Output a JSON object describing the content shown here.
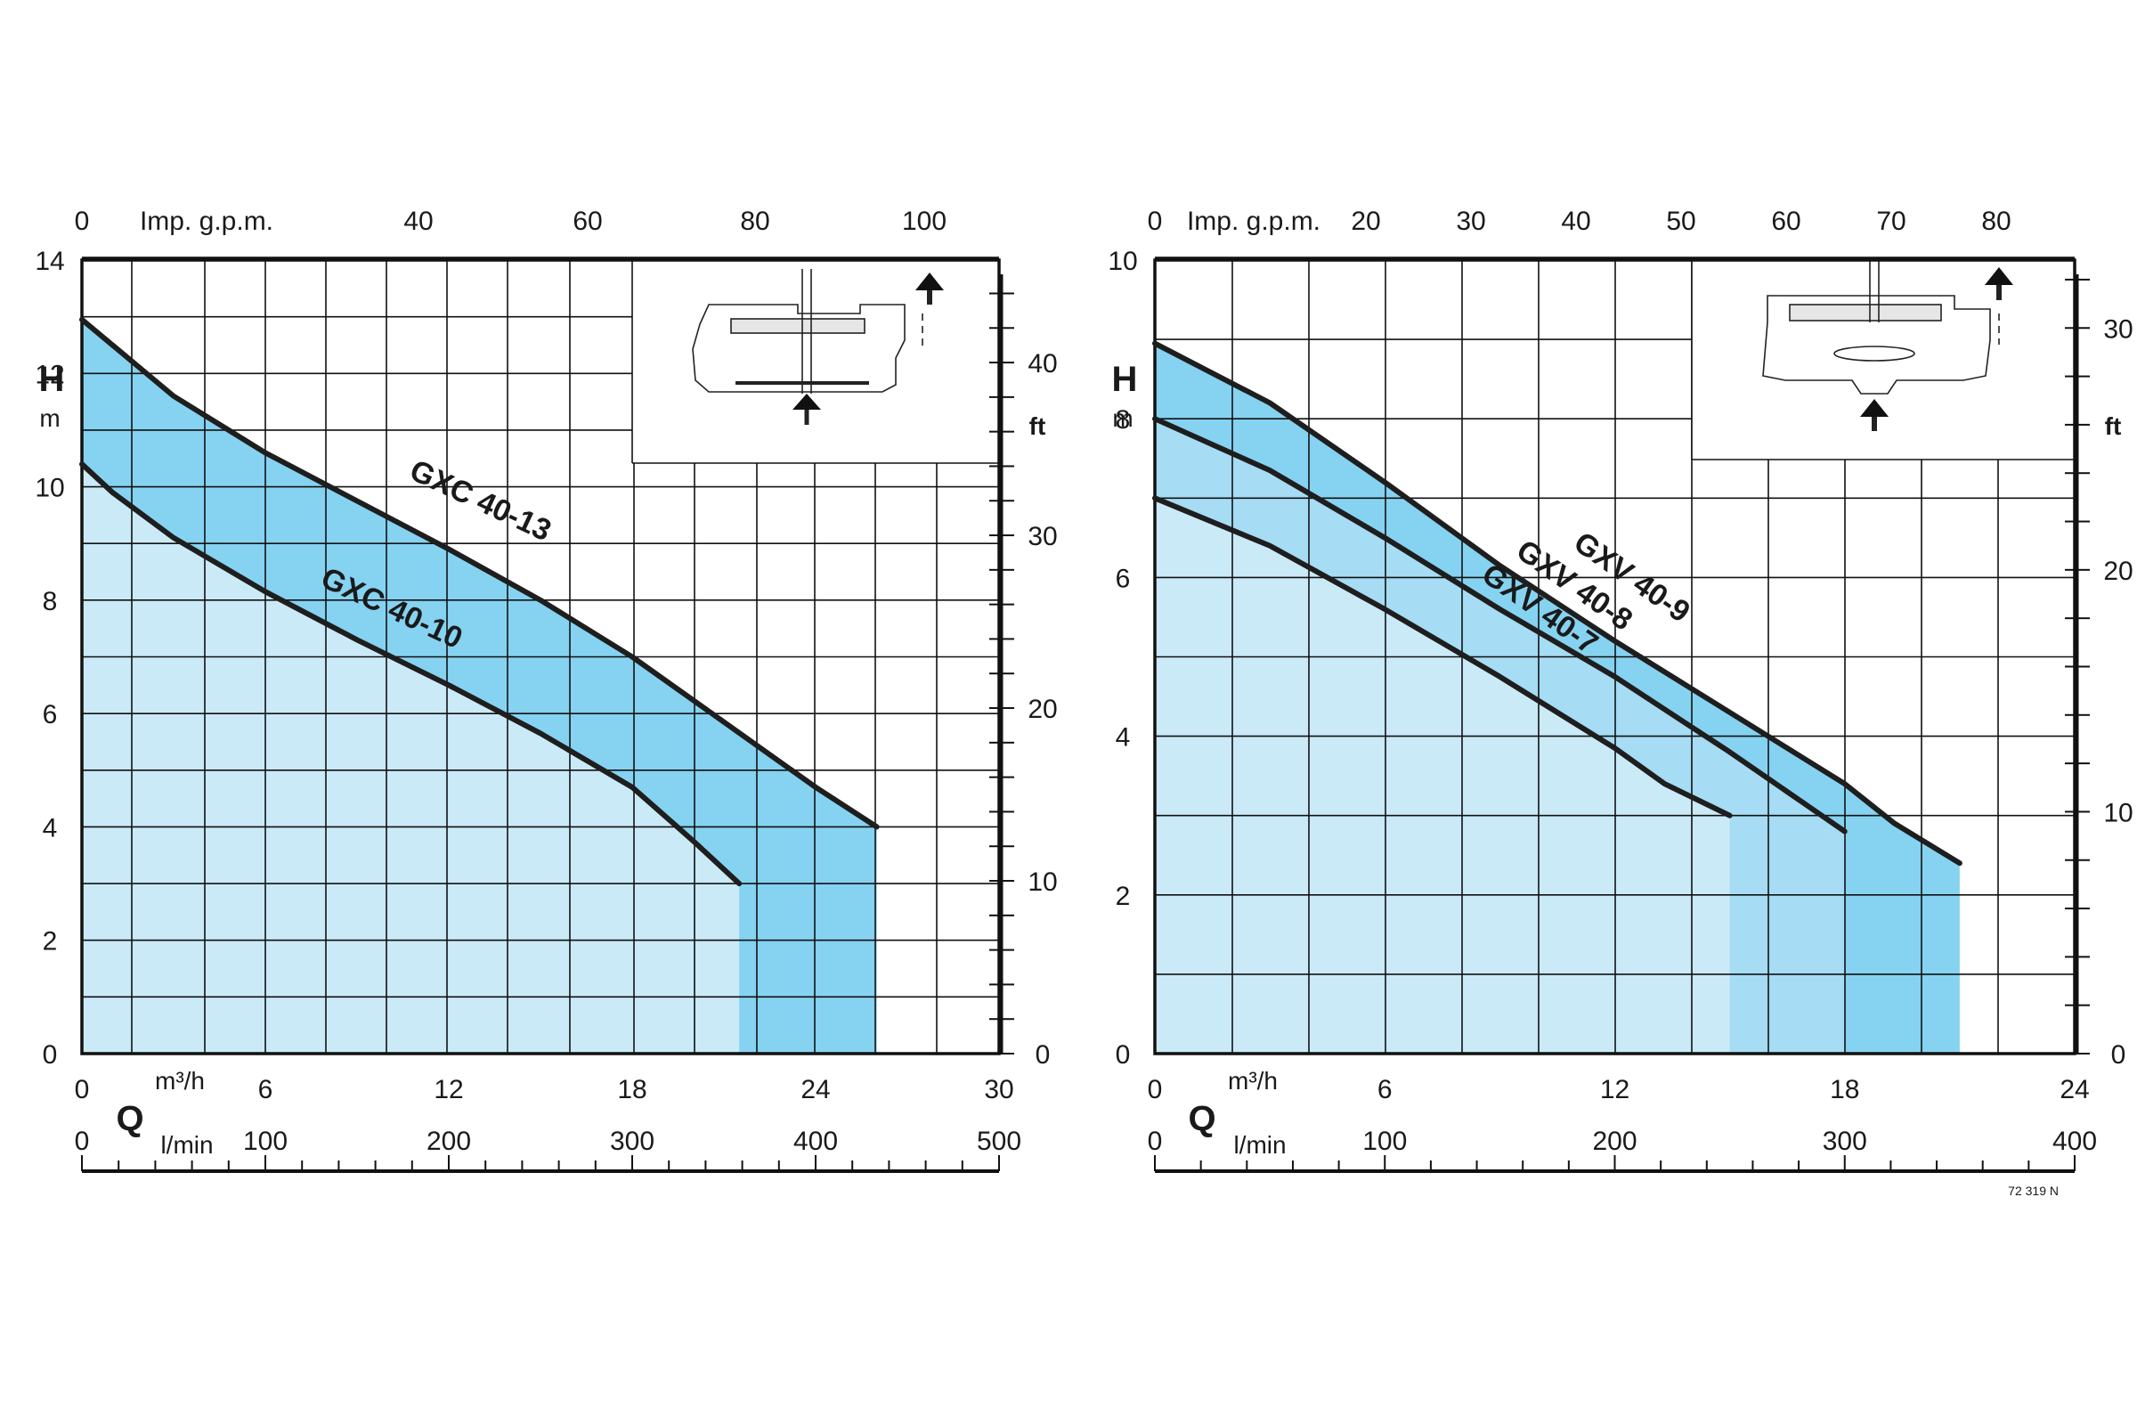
{
  "colors": {
    "fill_light": "#cbeaf8",
    "fill_mid": "#a6dcf4",
    "fill_dark": "#86d2f1",
    "curve": "#1e1e1e",
    "grid": "#111111"
  },
  "figure_code": "72 319 N",
  "chart_data": [
    {
      "type": "line",
      "area_fill": true,
      "left_axis": {
        "letter": "H",
        "unit": "m",
        "ticks": [
          0,
          2,
          4,
          6,
          8,
          10,
          12,
          14
        ],
        "range": [
          0,
          14
        ]
      },
      "right_axis": {
        "unit": "ft",
        "ticks": [
          0,
          10,
          20,
          30,
          40
        ],
        "range_m": [
          0,
          14
        ]
      },
      "top_axis": {
        "label": "Imp. g.p.m.",
        "ticks": [
          0,
          40,
          60,
          80,
          100
        ]
      },
      "bottom_axis": {
        "letter": "Q",
        "unit": "m³/h",
        "unit_lmin": "l/min",
        "ticks": [
          0,
          6,
          12,
          18,
          24,
          30
        ],
        "ticks_lmin": [
          0,
          100,
          200,
          300,
          400,
          500
        ],
        "range": [
          0,
          30
        ]
      },
      "series": [
        {
          "name": "GXC 40-13",
          "x": [
            0,
            1,
            3,
            6,
            9,
            12,
            15,
            18,
            21,
            24,
            26
          ],
          "y": [
            12.95,
            12.5,
            11.6,
            10.6,
            9.75,
            8.9,
            8.0,
            7.0,
            5.85,
            4.7,
            4.0
          ]
        },
        {
          "name": "GXC 40-10",
          "x": [
            0,
            1,
            3,
            6,
            9,
            12,
            15,
            18,
            20,
            21.5
          ],
          "y": [
            10.4,
            9.9,
            9.1,
            8.15,
            7.3,
            6.5,
            5.65,
            4.7,
            3.75,
            3.0
          ]
        }
      ]
    },
    {
      "type": "line",
      "area_fill": true,
      "left_axis": {
        "letter": "H",
        "unit": "m",
        "ticks": [
          0,
          2,
          4,
          6,
          8,
          10
        ],
        "range": [
          0,
          10
        ]
      },
      "right_axis": {
        "unit": "ft",
        "ticks": [
          0,
          10,
          20,
          30
        ],
        "range_m": [
          0,
          10
        ]
      },
      "top_axis": {
        "label": "Imp. g.p.m.",
        "ticks": [
          0,
          20,
          30,
          40,
          50,
          60,
          70,
          80
        ]
      },
      "bottom_axis": {
        "letter": "Q",
        "unit": "m³/h",
        "unit_lmin": "l/min",
        "ticks": [
          0,
          6,
          12,
          18,
          24
        ],
        "ticks_lmin": [
          0,
          100,
          200,
          300,
          400
        ],
        "range": [
          0,
          24
        ]
      },
      "series": [
        {
          "name": "GXV 40-9",
          "x": [
            0,
            3,
            6,
            9,
            12,
            15,
            18,
            19.3,
            21
          ],
          "y": [
            8.95,
            8.2,
            7.2,
            6.15,
            5.2,
            4.3,
            3.4,
            2.9,
            2.4
          ]
        },
        {
          "name": "GXV 40-8",
          "x": [
            0,
            3,
            6,
            9,
            12,
            15,
            16.5,
            18
          ],
          "y": [
            8.0,
            7.35,
            6.5,
            5.6,
            4.75,
            3.8,
            3.3,
            2.8
          ]
        },
        {
          "name": "GXV 40-7",
          "x": [
            0,
            3,
            6,
            9,
            12,
            13.3,
            15
          ],
          "y": [
            7.0,
            6.4,
            5.6,
            4.75,
            3.85,
            3.4,
            3.0
          ]
        }
      ]
    }
  ]
}
